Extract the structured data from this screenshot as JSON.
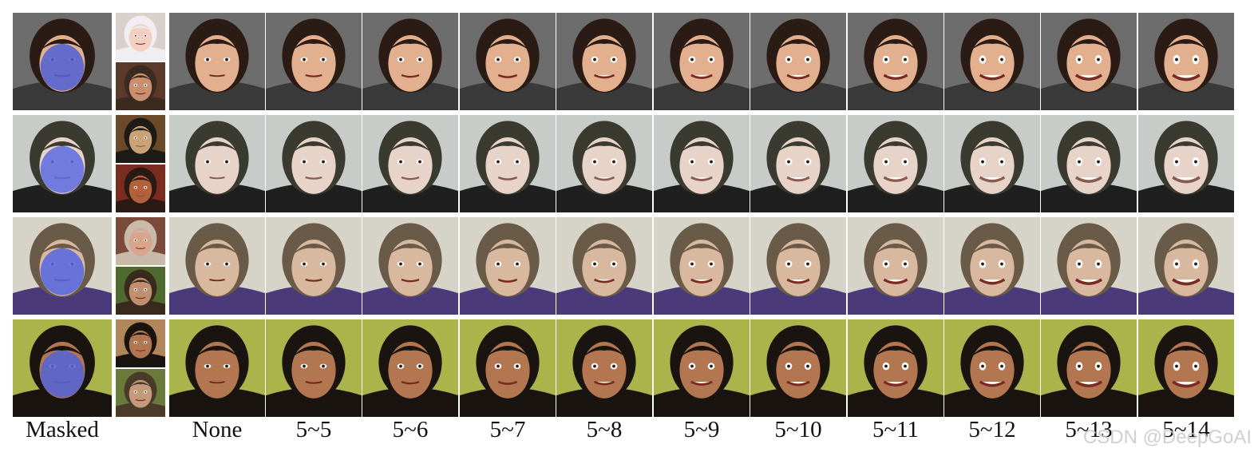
{
  "figure": {
    "column_labels": [
      "Masked",
      "None",
      "5~5",
      "5~6",
      "5~7",
      "5~8",
      "5~9",
      "5~10",
      "5~11",
      "5~12",
      "5~13",
      "5~14"
    ],
    "watermark": "CSDN @DeepGoAI",
    "rows": [
      {
        "name": "hooded-person",
        "background": "#6d6d6d",
        "hair": "#2a1c14",
        "skin": "#e2b08e",
        "hood": "#3a3a3a",
        "accent": "#b62a22",
        "mask_color": "#4f5fd6",
        "reference_top": {
          "background": "#d8d0cc",
          "hair": "#f1eef2",
          "skin": "#f2cfc0"
        },
        "reference_bottom": {
          "background": "#5b3a2c",
          "hair": "#3b2a1f",
          "skin": "#c98f6e"
        }
      },
      {
        "name": "man-blurred-background",
        "background": "#c8ccc9",
        "hair": "#3a3a30",
        "skin": "#e8d3c8",
        "hood": "#1f1f1f",
        "accent": "#1f1f1f",
        "mask_color": "#5b6be0",
        "reference_top": {
          "background": "#6b4a2a",
          "hair": "#1e1a16",
          "skin": "#c8a274"
        },
        "reference_bottom": {
          "background": "#7a2c1e",
          "hair": "#2a1a14",
          "skin": "#b4603a"
        }
      },
      {
        "name": "woman-purple-hat",
        "background": "#d6d4c8",
        "hair": "#6a5a48",
        "skin": "#d9b8a0",
        "hood": "#4a3a7a",
        "accent": "#2f2f2f",
        "mask_color": "#5566e0",
        "reference_top": {
          "background": "#7a4a3a",
          "hair": "#c9b9a8",
          "skin": "#d8a48c"
        },
        "reference_bottom": {
          "background": "#4e6a2e",
          "hair": "#3a2a1e",
          "skin": "#c09070"
        }
      },
      {
        "name": "woman-green-background",
        "background": "#a9b44a",
        "hair": "#1a1410",
        "skin": "#b27650",
        "hood": "#1a1410",
        "accent": "#8a2f3a",
        "mask_color": "#5064d8",
        "reference_top": {
          "background": "#b0865a",
          "hair": "#1a1410",
          "skin": "#b27650"
        },
        "reference_bottom": {
          "background": "#6a7a3a",
          "hair": "#4a3a2a",
          "skin": "#c49a7a"
        }
      }
    ]
  }
}
